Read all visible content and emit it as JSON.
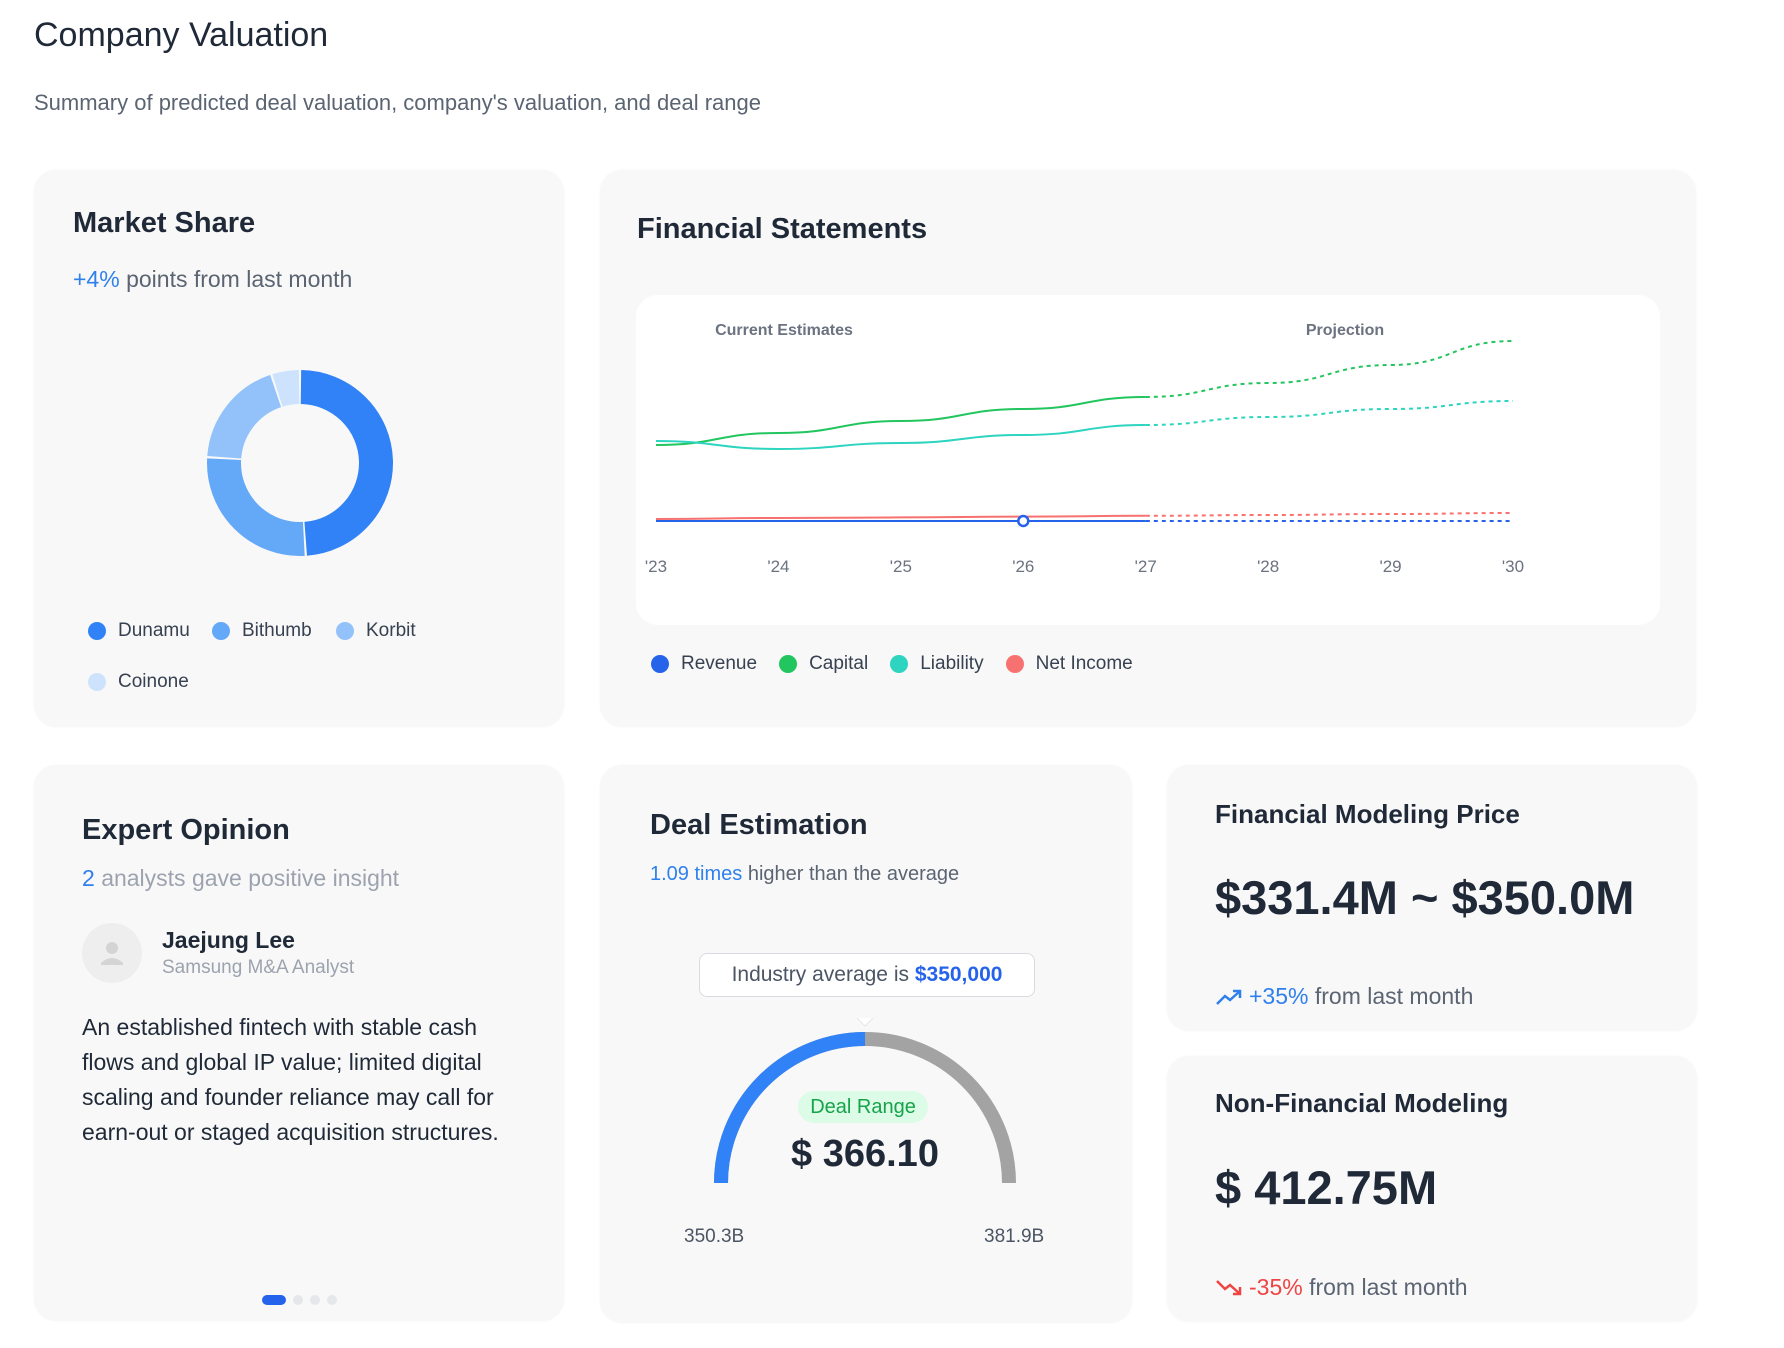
{
  "page": {
    "title": "Company Valuation",
    "subtitle": "Summary of predicted deal valuation, company's valuation, and deal range"
  },
  "market_share": {
    "title": "Market Share",
    "change_value": "+4%",
    "change_text": "points from last month",
    "legend": [
      {
        "label": "Dunamu",
        "color": "#3182f6"
      },
      {
        "label": "Bithumb",
        "color": "#64a8f8"
      },
      {
        "label": "Korbit",
        "color": "#93c2fb"
      },
      {
        "label": "Coinone",
        "color": "#cde3fd"
      }
    ],
    "slices": [
      {
        "label": "Dunamu",
        "share": 0.49
      },
      {
        "label": "Bithumb",
        "share": 0.27
      },
      {
        "label": "Korbit",
        "share": 0.19
      },
      {
        "label": "Coinone",
        "share": 0.05
      }
    ]
  },
  "financial_statements": {
    "title": "Financial Statements",
    "section_current": "Current Estimates",
    "section_projection": "Projection",
    "x_labels": [
      "'23",
      "'24",
      "'25",
      "'26",
      "'27",
      "'28",
      "'29",
      "'30"
    ],
    "legend": [
      {
        "label": "Revenue",
        "color": "#2563eb"
      },
      {
        "label": "Capital",
        "color": "#22c55e"
      },
      {
        "label": "Liability",
        "color": "#2dd4bf"
      },
      {
        "label": "Net Income",
        "color": "#f87171"
      }
    ]
  },
  "chart_data": {
    "type": "line",
    "x": [
      "'23",
      "'24",
      "'25",
      "'26",
      "'27",
      "'28",
      "'29",
      "'30"
    ],
    "actual_until_index": 4,
    "ylim": [
      0,
      100
    ],
    "series": [
      {
        "name": "Revenue",
        "values": [
          2,
          2,
          2,
          2,
          2,
          2,
          2,
          2
        ]
      },
      {
        "name": "Capital",
        "values": [
          40,
          46,
          52,
          58,
          64,
          71,
          80,
          92
        ]
      },
      {
        "name": "Liability",
        "values": [
          42,
          38,
          41,
          45,
          50,
          54,
          58,
          62
        ]
      },
      {
        "name": "Net Income",
        "values": [
          3,
          3.5,
          3.8,
          4.2,
          4.6,
          5,
          5.5,
          6
        ]
      }
    ]
  },
  "expert_opinion": {
    "title": "Expert Opinion",
    "count": "2",
    "count_text": "analysts gave positive insight",
    "analyst_name": "Jaejung Lee",
    "analyst_role": "Samsung M&A Analyst",
    "opinion": "An established fintech with stable cash flows and global IP value; limited digital scaling and founder reliance may call for earn-out or staged acquisition structures.",
    "pagination_count": 4,
    "pagination_active": 1
  },
  "deal_estimation": {
    "title": "Deal Estimation",
    "ratio_value": "1.09 times",
    "ratio_text": "higher than the average",
    "tooltip_prefix": "Industry average is",
    "tooltip_value": "$350,000",
    "badge": "Deal Range",
    "value": "$ 366.10",
    "min_label": "350.3B",
    "max_label": "381.9B",
    "gauge_fill": 0.5
  },
  "financial_modeling": {
    "title": "Financial Modeling Price",
    "value": "$331.4M ~ $350.0M",
    "change_value": "+35%",
    "change_text": "from last month",
    "icon": "trend-up-icon"
  },
  "non_financial_modeling": {
    "title": "Non-Financial Modeling",
    "value": "$ 412.75M",
    "change_value": "-35%",
    "change_text": "from last month",
    "icon": "trend-down-icon"
  },
  "colors": {
    "accent": "#2f80ed",
    "positive_badge_bg": "#dcfce7",
    "positive_badge_text": "#16a34a",
    "negative": "#ef4444"
  }
}
